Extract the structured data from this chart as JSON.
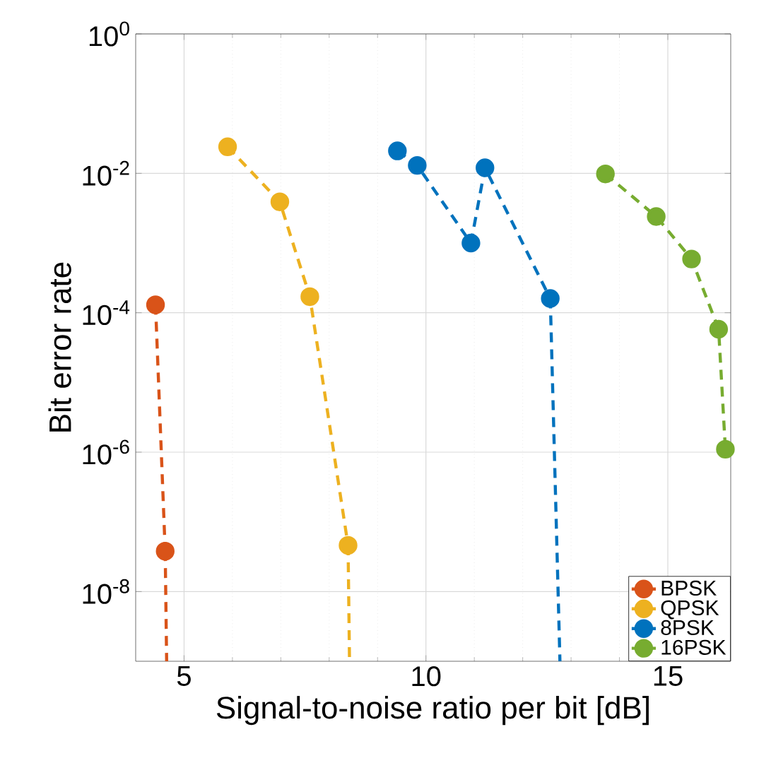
{
  "chart_data": {
    "type": "line",
    "xlabel": "Signal-to-noise ratio per bit [dB]",
    "ylabel": "Bit error rate",
    "log": "y",
    "grid": true,
    "legend": "bottom right",
    "marker": "circle",
    "line_style": "dashed",
    "xlim": [
      4,
      16.3
    ],
    "ylim": [
      1e-09,
      1
    ],
    "xticks": [
      5,
      10,
      15
    ],
    "yticks": [
      {
        "value": 1e-08,
        "label": "10$^{-8}$"
      },
      {
        "value": 1e-06,
        "label": "10$^{-6}$"
      },
      {
        "value": 0.0001,
        "label": "10$^{-4}$"
      },
      {
        "value": 0.01,
        "label": "10$^{-2}$"
      },
      {
        "value": 1,
        "label": "10$^{0}$"
      }
    ],
    "series": [
      {
        "name": "BPSK",
        "color": "#d95319",
        "x": [
          4.41,
          4.61
        ],
        "values": [
          0.00013,
          3.8e-08
        ]
      },
      {
        "name": "QPSK",
        "color": "#edb120",
        "x": [
          5.9,
          6.98,
          7.6,
          8.39
        ],
        "values": [
          0.024,
          0.0039,
          0.00017,
          4.6e-08
        ]
      },
      {
        "name": "8PSK",
        "color": "#0072bd",
        "x": [
          9.41,
          9.82,
          10.93,
          11.22,
          12.57
        ],
        "values": [
          0.021,
          0.013,
          0.001,
          0.012,
          0.00016
        ]
      },
      {
        "name": "16PSK",
        "color": "#77ac30",
        "x": [
          13.71,
          14.76,
          15.49,
          16.05,
          16.19
        ],
        "values": [
          0.0098,
          0.0024,
          0.00059,
          5.8e-05,
          1.1e-06
        ]
      },
      {
        "color": "#d95319",
        "marker": "none",
        "x": [
          4.61,
          4.64
        ],
        "values": [
          3.8e-08,
          1e-09
        ]
      },
      {
        "color": "#edb120",
        "marker": "none",
        "x": [
          8.39,
          8.42
        ],
        "values": [
          4.6e-08,
          1e-09
        ]
      },
      {
        "color": "#0072bd",
        "marker": "none",
        "x": [
          12.57,
          12.77
        ],
        "values": [
          0.00016,
          1e-09
        ]
      }
    ]
  }
}
